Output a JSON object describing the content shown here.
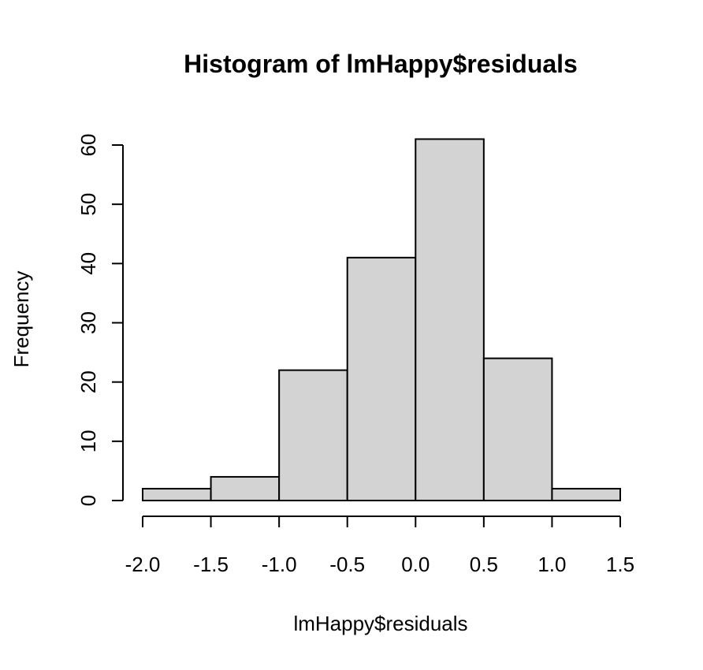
{
  "chart_data": {
    "type": "bar",
    "title": "Histogram of lmHappy$residuals",
    "xlabel": "lmHappy$residuals",
    "ylabel": "Frequency",
    "bin_edges": [
      -2.0,
      -1.5,
      -1.0,
      -0.5,
      0.0,
      0.5,
      1.0,
      1.5
    ],
    "counts": [
      2,
      4,
      22,
      41,
      61,
      24,
      2
    ],
    "xlim": [
      -2.0,
      1.5
    ],
    "ylim": [
      0,
      60
    ],
    "x_ticks": [
      -2.0,
      -1.5,
      -1.0,
      -0.5,
      0.0,
      0.5,
      1.0,
      1.5
    ],
    "x_tick_labels": [
      "-2.0",
      "-1.5",
      "-1.0",
      "-0.5",
      "0.0",
      "0.5",
      "1.0",
      "1.5"
    ],
    "y_ticks": [
      0,
      10,
      20,
      30,
      40,
      50,
      60
    ],
    "y_tick_labels": [
      "0",
      "10",
      "20",
      "30",
      "40",
      "50",
      "60"
    ],
    "bar_color": "#d3d3d3",
    "grid": false,
    "legend": "none"
  }
}
